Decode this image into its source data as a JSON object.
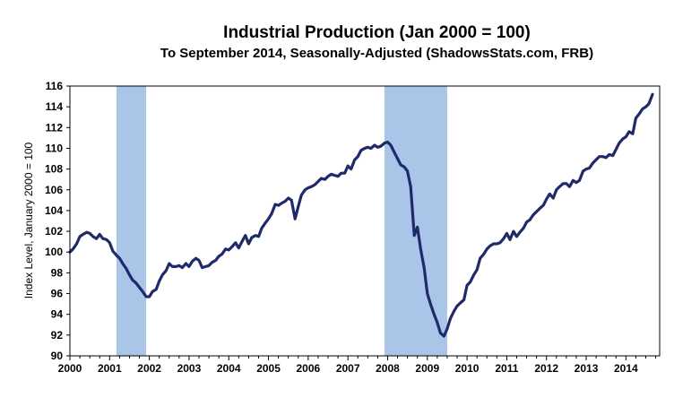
{
  "chart_data": {
    "type": "line",
    "title": "Industrial Production (Jan 2000 = 100)",
    "subtitle": "To September 2014, Seasonally-Adjusted (ShadowsStats.com, FRB)",
    "ylabel": "Index Level, January 2000 = 100",
    "xlabel": "",
    "ylim": [
      90,
      116
    ],
    "xlim": [
      2000.0,
      2014.85
    ],
    "y_ticks": [
      "90",
      "92",
      "94",
      "96",
      "98",
      "100",
      "102",
      "104",
      "106",
      "108",
      "110",
      "112",
      "114",
      "116"
    ],
    "x_ticks": [
      "2000",
      "2001",
      "2002",
      "2003",
      "2004",
      "2005",
      "2006",
      "2007",
      "2008",
      "2009",
      "2010",
      "2011",
      "2012",
      "2013",
      "2014"
    ],
    "grid": false,
    "legend": "none",
    "line_color": "#1f2a6b",
    "recession_color": "#a9c6e8",
    "recessions": [
      {
        "start": 2001.17,
        "end": 2001.92
      },
      {
        "start": 2007.92,
        "end": 2009.5
      }
    ],
    "series": [
      {
        "x": [
          2000.0,
          2000.08,
          2000.17,
          2000.25,
          2000.33,
          2000.42,
          2000.5,
          2000.58,
          2000.67,
          2000.75,
          2000.83,
          2000.92,
          2001.0,
          2001.08,
          2001.17,
          2001.25,
          2001.33,
          2001.42,
          2001.5,
          2001.58,
          2001.67,
          2001.75,
          2001.83,
          2001.92,
          2002.0,
          2002.08,
          2002.17,
          2002.25,
          2002.33,
          2002.42,
          2002.5,
          2002.58,
          2002.67,
          2002.75,
          2002.83,
          2002.92,
          2003.0,
          2003.08,
          2003.17,
          2003.25,
          2003.33,
          2003.42,
          2003.5,
          2003.58,
          2003.67,
          2003.75,
          2003.83,
          2003.92,
          2004.0,
          2004.08,
          2004.17,
          2004.25,
          2004.33,
          2004.42,
          2004.5,
          2004.58,
          2004.67,
          2004.75,
          2004.83,
          2004.92,
          2005.0,
          2005.08,
          2005.17,
          2005.25,
          2005.33,
          2005.42,
          2005.5,
          2005.58,
          2005.67,
          2005.75,
          2005.83,
          2005.92,
          2006.0,
          2006.08,
          2006.17,
          2006.25,
          2006.33,
          2006.42,
          2006.5,
          2006.58,
          2006.67,
          2006.75,
          2006.83,
          2006.92,
          2007.0,
          2007.08,
          2007.17,
          2007.25,
          2007.33,
          2007.42,
          2007.5,
          2007.58,
          2007.67,
          2007.75,
          2007.83,
          2007.92,
          2008.0,
          2008.08,
          2008.17,
          2008.25,
          2008.33,
          2008.42,
          2008.5,
          2008.58,
          2008.67,
          2008.75,
          2008.83,
          2008.92,
          2009.0,
          2009.08,
          2009.17,
          2009.25,
          2009.33,
          2009.42,
          2009.5,
          2009.58,
          2009.67,
          2009.75,
          2009.83,
          2009.92,
          2010.0,
          2010.08,
          2010.17,
          2010.25,
          2010.33,
          2010.42,
          2010.5,
          2010.58,
          2010.67,
          2010.75,
          2010.83,
          2010.92,
          2011.0,
          2011.08,
          2011.17,
          2011.25,
          2011.33,
          2011.42,
          2011.5,
          2011.58,
          2011.67,
          2011.75,
          2011.83,
          2011.92,
          2012.0,
          2012.08,
          2012.17,
          2012.25,
          2012.33,
          2012.42,
          2012.5,
          2012.58,
          2012.67,
          2012.75,
          2012.83,
          2012.92,
          2013.0,
          2013.08,
          2013.17,
          2013.25,
          2013.33,
          2013.42,
          2013.5,
          2013.58,
          2013.67,
          2013.75,
          2013.83,
          2013.92,
          2014.0,
          2014.08,
          2014.17,
          2014.25,
          2014.33,
          2014.42,
          2014.5,
          2014.58,
          2014.67
        ],
        "y": [
          100.0,
          100.3,
          100.8,
          101.5,
          101.7,
          101.9,
          101.8,
          101.5,
          101.3,
          101.7,
          101.3,
          101.2,
          100.9,
          100.1,
          99.7,
          99.4,
          98.9,
          98.4,
          97.8,
          97.3,
          97.0,
          96.6,
          96.2,
          95.7,
          95.7,
          96.2,
          96.4,
          97.2,
          97.8,
          98.2,
          98.9,
          98.6,
          98.6,
          98.7,
          98.5,
          98.9,
          98.6,
          99.1,
          99.4,
          99.2,
          98.5,
          98.6,
          98.7,
          99.0,
          99.2,
          99.6,
          99.8,
          100.3,
          100.2,
          100.5,
          100.9,
          100.4,
          101.0,
          101.6,
          100.8,
          101.4,
          101.6,
          101.5,
          102.3,
          102.8,
          103.2,
          103.7,
          104.6,
          104.5,
          104.7,
          104.9,
          105.2,
          105.0,
          103.2,
          104.4,
          105.5,
          106.0,
          106.2,
          106.3,
          106.5,
          106.8,
          107.1,
          107.0,
          107.3,
          107.5,
          107.4,
          107.3,
          107.6,
          107.6,
          108.3,
          108.0,
          108.9,
          109.2,
          109.8,
          110.0,
          110.1,
          110.0,
          110.3,
          110.1,
          110.2,
          110.5,
          110.6,
          110.3,
          109.6,
          109.0,
          108.4,
          108.2,
          107.8,
          106.3,
          101.6,
          102.4,
          100.3,
          98.5,
          96.0,
          95.0,
          94.0,
          93.2,
          92.2,
          91.9,
          92.6,
          93.6,
          94.3,
          94.8,
          95.1,
          95.4,
          96.8,
          97.1,
          97.8,
          98.3,
          99.4,
          99.8,
          100.3,
          100.6,
          100.8,
          100.8,
          100.9,
          101.3,
          101.8,
          101.2,
          102.0,
          101.5,
          101.9,
          102.3,
          102.9,
          103.1,
          103.6,
          103.9,
          104.2,
          104.5,
          105.1,
          105.6,
          105.2,
          106.0,
          106.3,
          106.6,
          106.6,
          106.3,
          106.9,
          106.7,
          106.9,
          107.8,
          108.0,
          108.1,
          108.6,
          108.9,
          109.2,
          109.2,
          109.1,
          109.4,
          109.3,
          109.9,
          110.5,
          110.9,
          111.1,
          111.6,
          111.4,
          112.9,
          113.3,
          113.8,
          114.0,
          114.3,
          115.2
        ]
      }
    ]
  }
}
